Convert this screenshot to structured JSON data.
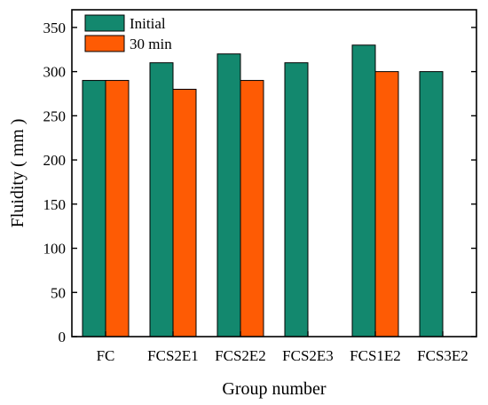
{
  "chart_data": {
    "type": "bar",
    "xlabel": "Group number",
    "ylabel": "Fluidity ( mm )",
    "categories": [
      "FC",
      "FCS2E1",
      "FCS2E2",
      "FCS2E3",
      "FCS1E2",
      "FCS3E2"
    ],
    "series": [
      {
        "name": "Initial",
        "color": "#13886e",
        "values": [
          290,
          310,
          320,
          310,
          330,
          300
        ]
      },
      {
        "name": "30 min",
        "color": "#fe5b04",
        "values": [
          290,
          280,
          290,
          null,
          300,
          null
        ]
      }
    ],
    "yticks": [
      0,
      50,
      100,
      150,
      200,
      250,
      300,
      350
    ],
    "ylim": [
      0,
      370
    ],
    "grid": false,
    "legend_position": "top-left"
  }
}
